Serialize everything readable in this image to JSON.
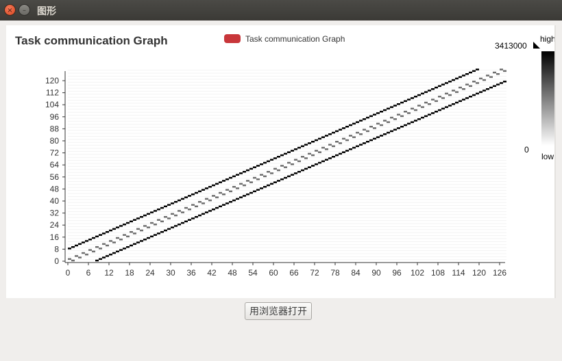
{
  "window": {
    "title": "图形",
    "close_glyph": "×",
    "minimize_glyph": "–"
  },
  "chart_data": {
    "type": "heatmap",
    "title": "Task communication Graph",
    "legend": {
      "label": "Task communication Graph",
      "color": "#c8363a",
      "placement": "top-center"
    },
    "colorbar": {
      "max_value": "3413000",
      "min_value": "0",
      "high_label": "high",
      "low_label": "low"
    },
    "x_ticks": [
      0,
      6,
      12,
      18,
      24,
      30,
      36,
      42,
      48,
      54,
      60,
      66,
      72,
      78,
      84,
      90,
      96,
      102,
      108,
      114,
      120,
      126
    ],
    "y_ticks": [
      0,
      8,
      16,
      24,
      32,
      40,
      48,
      56,
      64,
      72,
      80,
      88,
      96,
      104,
      112,
      120
    ],
    "xlim": [
      0,
      128
    ],
    "ylim": [
      0,
      128
    ],
    "grid": false,
    "bands": [
      {
        "offset": 8,
        "shade": "#000000",
        "pattern": "solid"
      },
      {
        "offset": -8,
        "shade": "#000000",
        "pattern": "solid"
      },
      {
        "offset": 1,
        "shade": "#6e6e6e",
        "pattern": "pairs"
      },
      {
        "offset": -1,
        "shade": "#6e6e6e",
        "pattern": "pairs"
      }
    ]
  },
  "actions": {
    "open_in_browser": "用浏览器打开"
  }
}
